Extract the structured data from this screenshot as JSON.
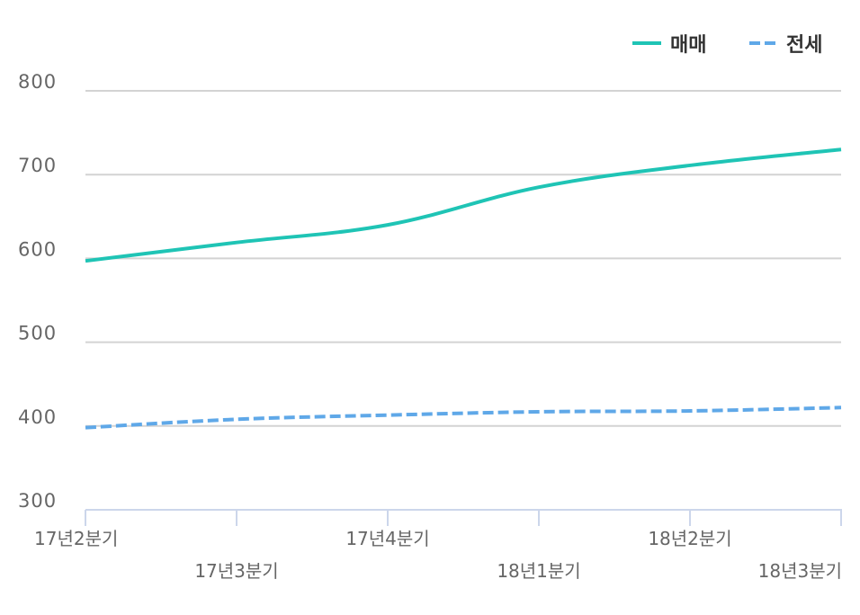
{
  "chart_data": {
    "type": "line",
    "title": "",
    "xlabel": "",
    "ylabel": "",
    "categories": [
      "17년2분기",
      "17년3분기",
      "17년4분기",
      "18년1분기",
      "18년2분기",
      "18년3분기"
    ],
    "series": [
      {
        "name": "매매",
        "values": [
          597,
          619,
          640,
          685,
          711,
          730
        ],
        "color": "#1fc4b5",
        "style": "solid"
      },
      {
        "name": "전세",
        "values": [
          398,
          408,
          413,
          417,
          418,
          422
        ],
        "color": "#5fa8e8",
        "style": "dashed"
      }
    ],
    "ylim": [
      300,
      800
    ],
    "yticks": [
      300,
      400,
      500,
      600,
      700,
      800
    ],
    "grid": true,
    "legend_position": "top-right",
    "smooth": true
  },
  "legend": {
    "items": [
      {
        "label": "매매",
        "color": "#1fc4b5"
      },
      {
        "label": "전세",
        "color": "#5fa8e8"
      }
    ]
  },
  "colors": {
    "grid": "#d3d3d3",
    "axis": "#ccd6eb",
    "tick_text": "#666666"
  }
}
